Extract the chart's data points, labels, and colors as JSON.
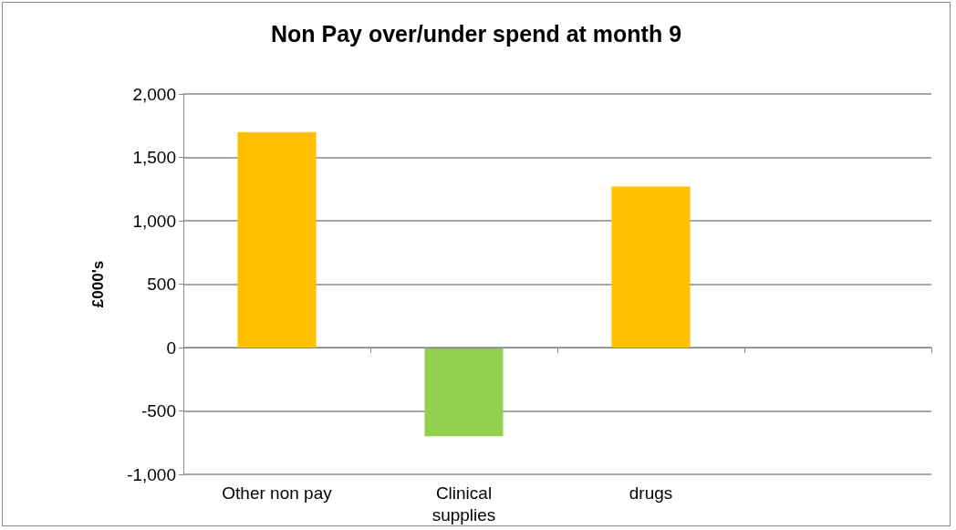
{
  "chart_data": {
    "type": "bar",
    "title": "Non Pay over/under spend at month 9",
    "ylabel": "£000's",
    "categories": [
      "Other non pay",
      "Clinical\nsupplies",
      "drugs",
      null
    ],
    "values": [
      1700,
      -700,
      1270,
      null
    ],
    "colors": [
      "#ffc000",
      "#92d050",
      "#ffc000",
      "#ffc000"
    ],
    "ylim": [
      -1000,
      2000
    ],
    "yticks": [
      {
        "value": -1000,
        "label": "-1,000"
      },
      -500,
      0,
      500,
      {
        "value": 1000,
        "label": "1,000"
      },
      {
        "value": 1500,
        "label": "1,500"
      },
      {
        "value": 2000,
        "label": "2,000"
      }
    ],
    "grid": "y"
  }
}
